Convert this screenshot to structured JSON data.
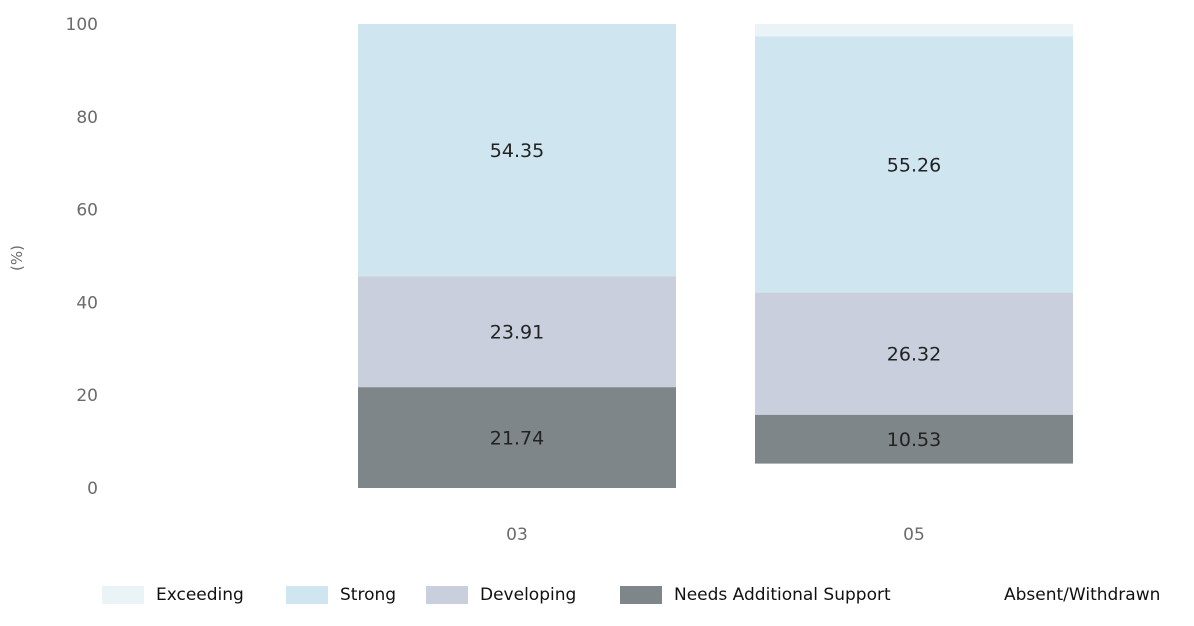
{
  "chart_data": {
    "type": "bar",
    "stacked": true,
    "categories": [
      "03",
      "05"
    ],
    "ylabel": "(%)",
    "ylim": [
      0,
      100
    ],
    "yticks": [
      0,
      20,
      40,
      60,
      80,
      100
    ],
    "grid": false,
    "legend_position": "bottom",
    "series": [
      {
        "name": "Absent/Withdrawn",
        "values": [
          0,
          5.26
        ],
        "color": "#ffffff",
        "show_label": false
      },
      {
        "name": "Needs Additional Support",
        "values": [
          21.74,
          10.53
        ],
        "color": "#7e868a",
        "show_label": true
      },
      {
        "name": "Developing",
        "values": [
          23.91,
          26.32
        ],
        "color": "#c9cfdc",
        "show_label": true
      },
      {
        "name": "Strong",
        "values": [
          54.35,
          55.26
        ],
        "color": "#cfe6f0",
        "show_label": true
      },
      {
        "name": "Exceeding",
        "values": [
          0,
          2.63
        ],
        "color": "#eaf4f7",
        "show_label": false
      }
    ],
    "legend_order": [
      "Exceeding",
      "Strong",
      "Developing",
      "Needs Additional Support",
      "Absent/Withdrawn"
    ]
  }
}
